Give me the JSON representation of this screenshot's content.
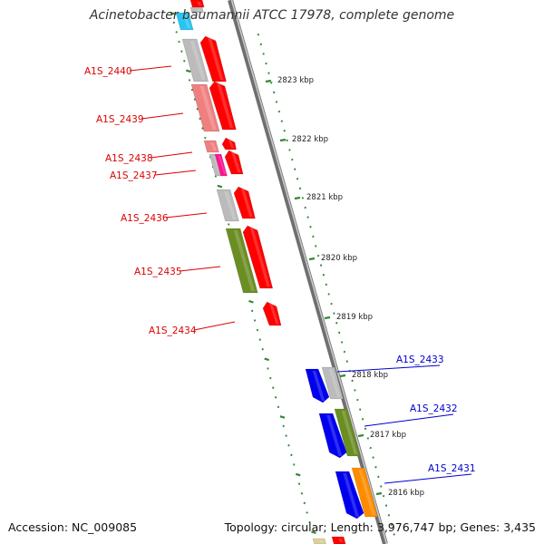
{
  "title": "Acinetobacter baumannii ATCC 17978, complete genome",
  "footer": {
    "accession": "Accession: NC_009085",
    "topology": "Topology: circular; Length: 3,976,747 bp; Genes: 3,435"
  },
  "colors": {
    "forward_strand": "#ff0000",
    "reverse_strand": "#0000ee",
    "reverse_label": "#0000cc",
    "forward_label": "#dd0000",
    "backbone": "#888888",
    "ticks": "#338833",
    "other_gene_grey": "#bbbbbb",
    "other_gene_olive": "#6b8e23",
    "other_gene_salmon": "#f08080",
    "other_gene_orange": "#ff8c00",
    "other_gene_magenta": "#ff1493",
    "other_gene_cyan": "#00bfff"
  },
  "kbp_labels": [
    "2823 kbp",
    "2822 kbp",
    "2821 kbp",
    "2820 kbp",
    "2819 kbp",
    "2818 kbp",
    "2817 kbp",
    "2816 kbp"
  ],
  "genes": [
    {
      "label": "A1S_2440",
      "strand": "forward"
    },
    {
      "label": "A1S_2439",
      "strand": "forward"
    },
    {
      "label": "A1S_2438",
      "strand": "forward"
    },
    {
      "label": "A1S_2437",
      "strand": "forward"
    },
    {
      "label": "A1S_2436",
      "strand": "forward"
    },
    {
      "label": "A1S_2435",
      "strand": "forward"
    },
    {
      "label": "A1S_2434",
      "strand": "forward"
    },
    {
      "label": "A1S_2433",
      "strand": "reverse"
    },
    {
      "label": "A1S_2432",
      "strand": "reverse"
    },
    {
      "label": "A1S_2431",
      "strand": "reverse"
    }
  ]
}
